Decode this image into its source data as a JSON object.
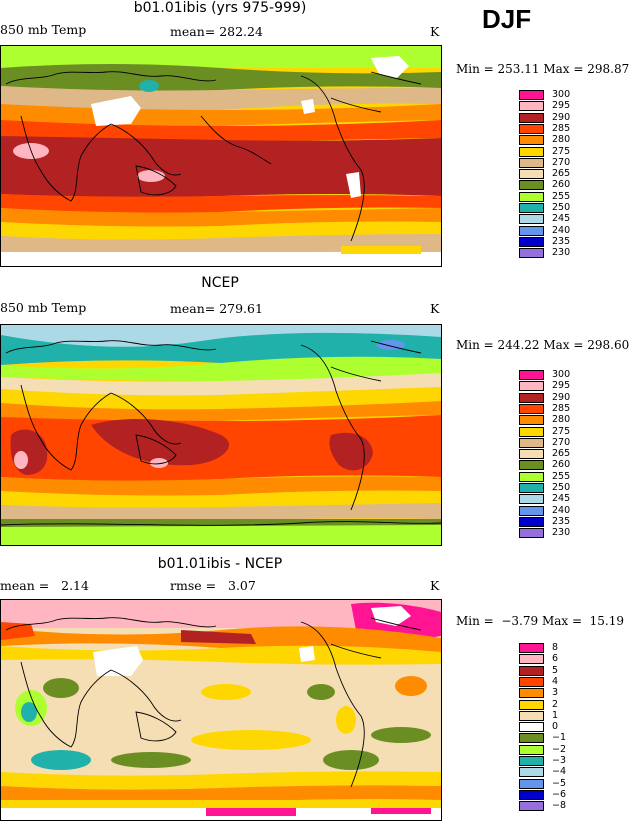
{
  "season": "DJF",
  "panels": [
    {
      "title": "b01.01ibis (yrs 975-999)",
      "left_label": "850 mb Temp",
      "center_label": "mean= 282.24",
      "unit": "K",
      "minmax": "Min = 253.11 Max = 298.87",
      "legend": {
        "labels": [
          "300",
          "295",
          "290",
          "285",
          "280",
          "275",
          "270",
          "265",
          "260",
          "255",
          "250",
          "245",
          "240",
          "235",
          "230"
        ],
        "colors": [
          "#ff1493",
          "#ffb6c1",
          "#b22222",
          "#ff4500",
          "#ff8c00",
          "#ffd700",
          "#deb887",
          "#f5deb3",
          "#6b8e23",
          "#adff2f",
          "#20b2aa",
          "#add8e6",
          "#6495ed",
          "#0000cd",
          "#9370db"
        ]
      }
    },
    {
      "title": "NCEP",
      "left_label": "850 mb Temp",
      "center_label": "mean= 279.61",
      "unit": "K",
      "minmax": "Min = 244.22 Max = 298.60",
      "legend": {
        "labels": [
          "300",
          "295",
          "290",
          "285",
          "280",
          "275",
          "270",
          "265",
          "260",
          "255",
          "250",
          "245",
          "240",
          "235",
          "230"
        ],
        "colors": [
          "#ff1493",
          "#ffb6c1",
          "#b22222",
          "#ff4500",
          "#ff8c00",
          "#ffd700",
          "#deb887",
          "#f5deb3",
          "#6b8e23",
          "#adff2f",
          "#20b2aa",
          "#add8e6",
          "#6495ed",
          "#0000cd",
          "#9370db"
        ]
      }
    },
    {
      "title": "b01.01ibis - NCEP",
      "left_label": "mean =   2.14",
      "center_label": "rmse =   3.07",
      "unit": "K",
      "minmax": "Min =  −3.79 Max =  15.19",
      "legend": {
        "labels": [
          "8",
          "6",
          "5",
          "4",
          "3",
          "2",
          "1",
          "0",
          "−1",
          "−2",
          "−3",
          "−4",
          "−5",
          "−6",
          "−8"
        ],
        "colors": [
          "#ff1493",
          "#ffb6c1",
          "#b22222",
          "#ff4500",
          "#ff8c00",
          "#ffd700",
          "#f5deb3",
          "#ffffff",
          "#6b8e23",
          "#adff2f",
          "#20b2aa",
          "#add8e6",
          "#6495ed",
          "#0000cd",
          "#9370db"
        ]
      }
    }
  ]
}
